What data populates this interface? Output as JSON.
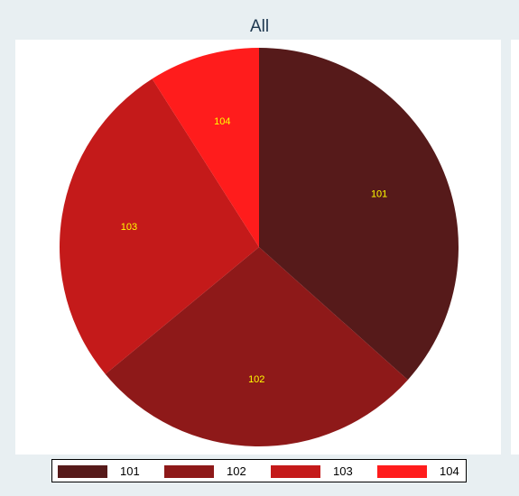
{
  "chart_data": {
    "type": "pie",
    "title": "All",
    "slices": [
      {
        "label": "101",
        "value": 36.6,
        "color": "#561a1a"
      },
      {
        "label": "102",
        "value": 27.4,
        "color": "#8e1919"
      },
      {
        "label": "103",
        "value": 27.0,
        "color": "#c41a1a"
      },
      {
        "label": "104",
        "value": 9.0,
        "color": "#ff1c1c"
      }
    ],
    "start_angle": "12 o'clock",
    "direction": "clockwise",
    "legend_position": "bottom",
    "label_color": "#ffff00",
    "background_color": "#e8eff2",
    "plot_background_color": "#ffffff"
  }
}
